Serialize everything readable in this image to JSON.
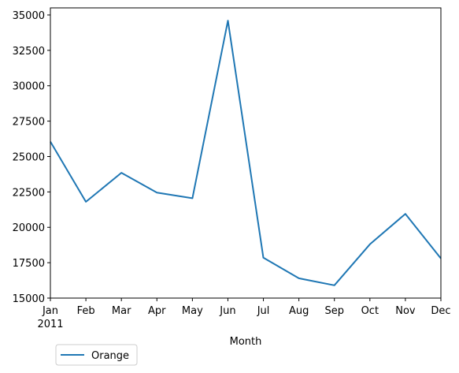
{
  "chart_data": {
    "type": "line",
    "x": [
      "Jan",
      "Feb",
      "Mar",
      "Apr",
      "May",
      "Jun",
      "Jul",
      "Aug",
      "Sep",
      "Oct",
      "Nov",
      "Dec"
    ],
    "x_year_label": "2011",
    "series": [
      {
        "name": "Orange",
        "color": "#1f77b4",
        "values": [
          26050,
          21800,
          23850,
          22450,
          22050,
          34600,
          17850,
          16400,
          15900,
          18800,
          20950,
          17800
        ]
      }
    ],
    "xlabel": "Month",
    "ylabel": "",
    "ylim": [
      15000,
      35500
    ],
    "yticks": [
      15000,
      17500,
      20000,
      22500,
      25000,
      27500,
      30000,
      32500,
      35000
    ],
    "grid": false,
    "legend_position": "below-left"
  }
}
